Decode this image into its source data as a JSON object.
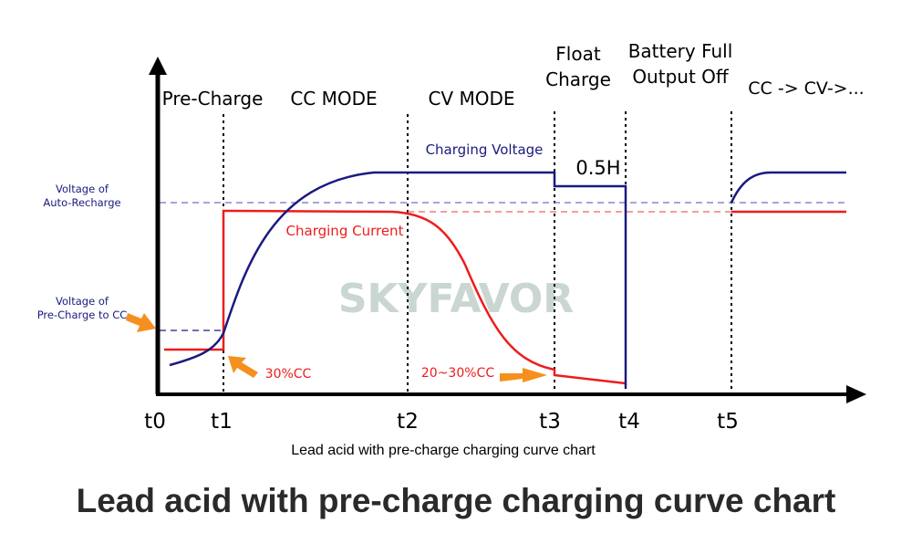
{
  "phases": [
    "Pre-Charge",
    "CC MODE",
    "CV MODE"
  ],
  "float_charge": [
    "Float",
    "Charge"
  ],
  "battery_full": [
    "Battery Full",
    "Output Off"
  ],
  "restart_label": "CC -> CV->...",
  "time_labels": [
    "t0",
    "t1",
    "t2",
    "t3",
    "t4",
    "t5"
  ],
  "y_labels": {
    "auto_recharge": [
      "Voltage of",
      "Auto-Recharge"
    ],
    "precharge_to_cc": [
      "Voltage of",
      "Pre-Charge to CC"
    ]
  },
  "curve_labels": {
    "voltage": "Charging Voltage",
    "current": "Charging Current"
  },
  "annotations": {
    "float_time": "0.5H",
    "precharge_current": "30%CC",
    "termination_current": "20~30%CC"
  },
  "watermark": "SKYFAVOR",
  "caption": "Lead acid with pre-charge charging curve chart",
  "title": "Lead acid with pre-charge charging curve chart",
  "colors": {
    "voltage": "#1a1a80",
    "current": "#ee1c1c",
    "arrow": "#f5901e",
    "axis": "#000000",
    "watermark": "#c9d6d2"
  }
}
